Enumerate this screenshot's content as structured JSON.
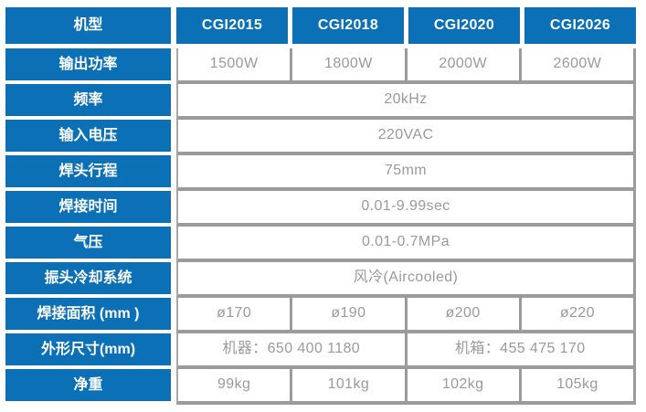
{
  "table": {
    "header": {
      "label": "机型",
      "models": [
        "CGI2015",
        "CGI2018",
        "CGI2020",
        "CGI2026"
      ]
    },
    "rows": [
      {
        "label": "输出功率",
        "type": "per-model",
        "values": [
          "1500W",
          "1800W",
          "2000W",
          "2600W"
        ]
      },
      {
        "label": "频率",
        "type": "span-all",
        "value": "20kHz"
      },
      {
        "label": "输入电压",
        "type": "span-all",
        "value": "220VAC"
      },
      {
        "label": "焊头行程",
        "type": "span-all",
        "value": "75mm"
      },
      {
        "label": "焊接时间",
        "type": "span-all",
        "value": "0.01-9.99sec"
      },
      {
        "label": "气压",
        "type": "span-all",
        "value": "0.01-0.7MPa"
      },
      {
        "label": "振头冷却系统",
        "type": "span-all",
        "value": "风冷(Aircooled)"
      },
      {
        "label": "焊接面积 (mm )",
        "type": "per-model",
        "values": [
          "ø170",
          "ø190",
          "ø200",
          "ø220"
        ]
      },
      {
        "label": "外形尺寸(mm)",
        "type": "half-span",
        "values": [
          "机器：650 400 1180",
          "机箱：455 475 170"
        ]
      },
      {
        "label": "净重",
        "type": "per-model",
        "values": [
          "99kg",
          "101kg",
          "102kg",
          "105kg"
        ]
      }
    ],
    "colors": {
      "header_blue": "#0b70b5",
      "border_gray": "#9b9b9b",
      "value_text": "#9a9a9a"
    }
  }
}
